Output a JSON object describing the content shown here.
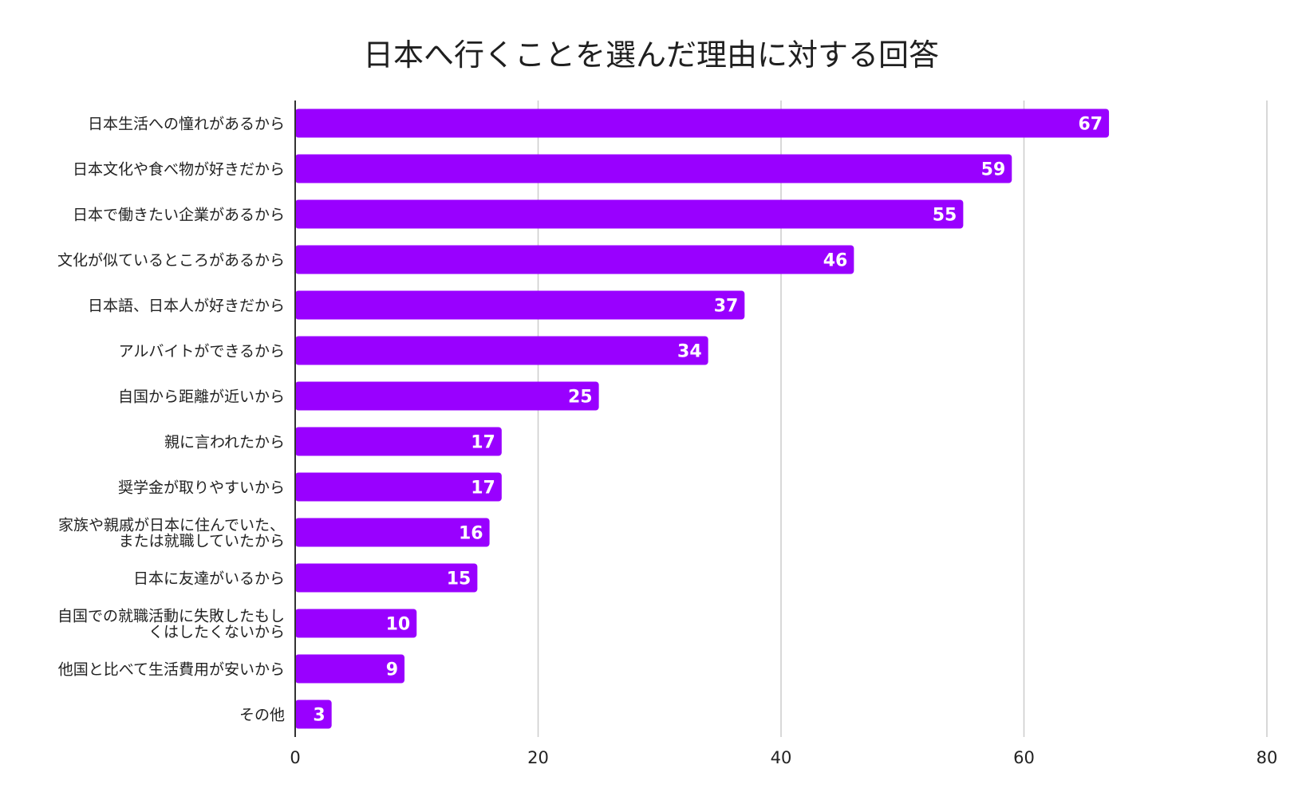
{
  "chart_data": {
    "type": "bar",
    "orientation": "horizontal",
    "title": "日本へ行くことを選んだ理由に対する回答",
    "xlabel": "",
    "ylabel": "",
    "xlim": [
      0,
      80
    ],
    "ticks": [
      0,
      20,
      40,
      60,
      80
    ],
    "grid": true,
    "color": "#9900ff",
    "categories": [
      [
        "日本生活への憧れがあるから"
      ],
      [
        "日本文化や食べ物が好きだから"
      ],
      [
        "日本で働きたい企業があるから"
      ],
      [
        "文化が似ているところがあるから"
      ],
      [
        "日本語、日本人が好きだから"
      ],
      [
        "アルバイトができるから"
      ],
      [
        "自国から距離が近いから"
      ],
      [
        "親に言われたから"
      ],
      [
        "奨学金が取りやすいから"
      ],
      [
        "家族や親戚が日本に住んでいた、",
        "または就職していたから"
      ],
      [
        "日本に友達がいるから"
      ],
      [
        "自国での就職活動に失敗したもし",
        "くはしたくないから"
      ],
      [
        "他国と比べて生活費用が安いから"
      ],
      [
        "その他"
      ]
    ],
    "values": [
      67,
      59,
      55,
      46,
      37,
      34,
      25,
      17,
      17,
      16,
      15,
      10,
      9,
      3
    ]
  }
}
